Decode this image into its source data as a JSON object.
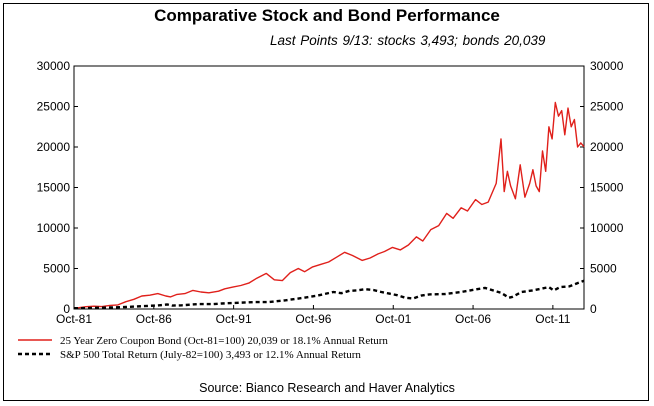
{
  "chart_data": {
    "type": "line",
    "title": "Comparative Stock and Bond Performance",
    "subtitle": "Last Points 9/13:  stocks 3,493;  bonds 20,039",
    "source": "Source: Bianco Research and Haver Analytics",
    "ylim": [
      0,
      30000
    ],
    "yticks": [
      "0",
      "5000",
      "10000",
      "15000",
      "20000",
      "25000",
      "30000"
    ],
    "ytick_values": [
      0,
      5000,
      10000,
      15000,
      20000,
      25000,
      30000
    ],
    "xlim": [
      1981.75,
      2013.7
    ],
    "xticks": [
      "Oct-81",
      "Oct-86",
      "Oct-91",
      "Oct-96",
      "Oct-01",
      "Oct-06",
      "Oct-11"
    ],
    "xtick_values": [
      1981.75,
      1986.75,
      1991.75,
      1996.75,
      2001.75,
      2006.75,
      2011.75
    ],
    "series": [
      {
        "name": "25 Year Zero Coupon Bond (Oct-81=100) 20,039 or 18.1% Annual Return",
        "color": "#e0201b",
        "style": "solid",
        "x": [
          1981.75,
          1982.0,
          1982.5,
          1983.0,
          1983.5,
          1984.0,
          1984.5,
          1985.0,
          1985.5,
          1986.0,
          1986.5,
          1987.0,
          1987.5,
          1987.8,
          1988.2,
          1988.7,
          1989.2,
          1989.7,
          1990.2,
          1990.8,
          1991.2,
          1991.7,
          1992.2,
          1992.7,
          1993.2,
          1993.8,
          1994.3,
          1994.8,
          1995.3,
          1995.8,
          1996.2,
          1996.7,
          1997.2,
          1997.7,
          1998.2,
          1998.7,
          1999.2,
          1999.8,
          2000.3,
          2000.8,
          2001.2,
          2001.7,
          2002.2,
          2002.7,
          2003.2,
          2003.6,
          2004.1,
          2004.6,
          2005.1,
          2005.5,
          2006.0,
          2006.4,
          2006.9,
          2007.3,
          2007.7,
          2008.2,
          2008.5,
          2008.7,
          2008.9,
          2009.1,
          2009.4,
          2009.7,
          2010.0,
          2010.3,
          2010.5,
          2010.7,
          2010.9,
          2011.1,
          2011.3,
          2011.5,
          2011.7,
          2011.9,
          2012.1,
          2012.3,
          2012.5,
          2012.7,
          2012.9,
          2013.1,
          2013.3,
          2013.5,
          2013.7
        ],
        "y": [
          100,
          150,
          280,
          350,
          300,
          450,
          500,
          900,
          1200,
          1600,
          1700,
          1900,
          1600,
          1500,
          1800,
          1900,
          2300,
          2100,
          2000,
          2200,
          2500,
          2700,
          2900,
          3200,
          3800,
          4400,
          3600,
          3500,
          4500,
          5000,
          4600,
          5200,
          5500,
          5800,
          6400,
          7000,
          6600,
          6000,
          6300,
          6800,
          7100,
          7600,
          7300,
          7900,
          8900,
          8400,
          9800,
          10300,
          11800,
          11200,
          12500,
          12100,
          13500,
          12900,
          13200,
          15500,
          21000,
          14500,
          17000,
          15200,
          13600,
          17800,
          13800,
          15500,
          17200,
          15200,
          14500,
          19500,
          17000,
          22500,
          21000,
          25500,
          23800,
          24500,
          21500,
          24800,
          22500,
          23400,
          20000,
          20500,
          20039
        ]
      },
      {
        "name": "S&P 500 Total Return (July-82=100) 3,493 or 12.1% Annual Return",
        "color": "#000000",
        "style": "dashed",
        "x": [
          1981.75,
          1982.5,
          1983.0,
          1984.0,
          1985.0,
          1986.0,
          1987.0,
          1987.6,
          1987.9,
          1988.5,
          1989.5,
          1990.5,
          1991.0,
          1992.0,
          1993.0,
          1994.0,
          1995.0,
          1996.0,
          1997.0,
          1998.0,
          1998.5,
          1999.0,
          1999.5,
          2000.0,
          2000.5,
          2001.0,
          2001.5,
          2002.0,
          2002.5,
          2003.0,
          2003.5,
          2004.0,
          2005.0,
          2006.0,
          2007.0,
          2007.5,
          2008.0,
          2008.5,
          2009.0,
          2009.2,
          2009.8,
          2010.5,
          2011.0,
          2011.5,
          2011.8,
          2012.2,
          2012.8,
          2013.3,
          2013.7
        ],
        "y": [
          100,
          100,
          150,
          180,
          250,
          350,
          450,
          550,
          420,
          460,
          600,
          600,
          680,
          760,
          850,
          870,
          1080,
          1350,
          1650,
          2100,
          1950,
          2250,
          2300,
          2450,
          2350,
          2100,
          1900,
          1700,
          1400,
          1300,
          1650,
          1800,
          1850,
          2100,
          2450,
          2600,
          2300,
          2000,
          1400,
          1500,
          2100,
          2300,
          2500,
          2700,
          2300,
          2700,
          2800,
          3200,
          3493
        ]
      }
    ]
  }
}
